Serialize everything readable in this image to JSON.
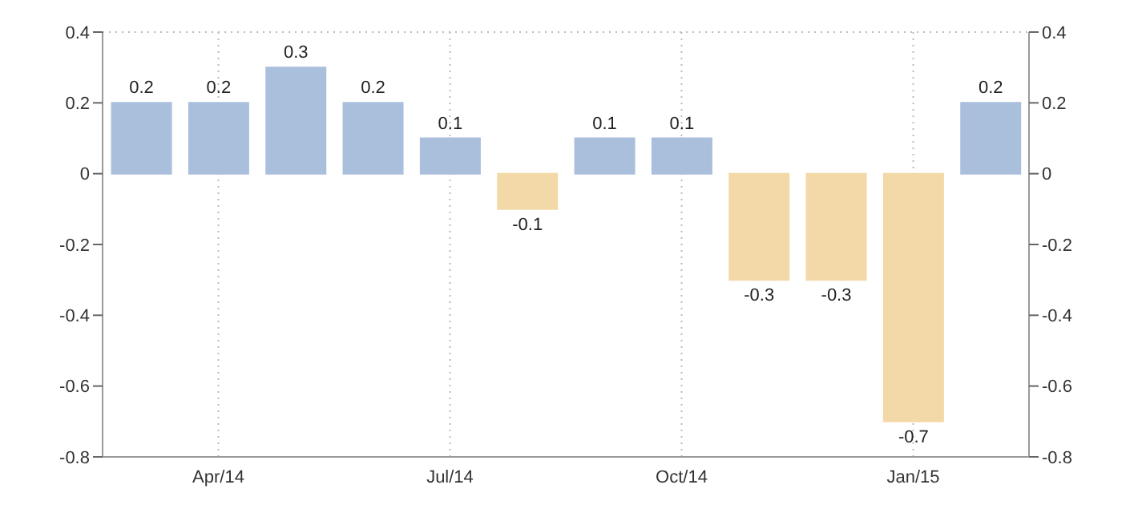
{
  "chart_data": {
    "type": "bar",
    "categories": [
      null,
      "Apr/14",
      null,
      null,
      "Jul/14",
      null,
      null,
      "Oct/14",
      null,
      null,
      "Jan/15",
      null
    ],
    "values": [
      0.2,
      0.2,
      0.3,
      0.2,
      0.1,
      -0.1,
      0.1,
      0.1,
      -0.3,
      -0.3,
      -0.7,
      0.2
    ],
    "colors": [
      "#aabfdc",
      "#aabfdc",
      "#aabfdc",
      "#aabfdc",
      "#aabfdc",
      "#f3d9a8",
      "#aabfdc",
      "#aabfdc",
      "#f3d9a8",
      "#f3d9a8",
      "#f3d9a8",
      "#aabfdc"
    ],
    "data_labels": true,
    "ylim": [
      -0.8,
      0.4
    ],
    "yticks": [
      -0.8,
      -0.6,
      -0.4,
      -0.2,
      0,
      0.2,
      0.4
    ],
    "y2lim": [
      -0.8,
      0.4
    ],
    "y2ticks": [
      -0.8,
      -0.6,
      -0.4,
      -0.2,
      0,
      0.2,
      0.4
    ],
    "grid": true
  }
}
